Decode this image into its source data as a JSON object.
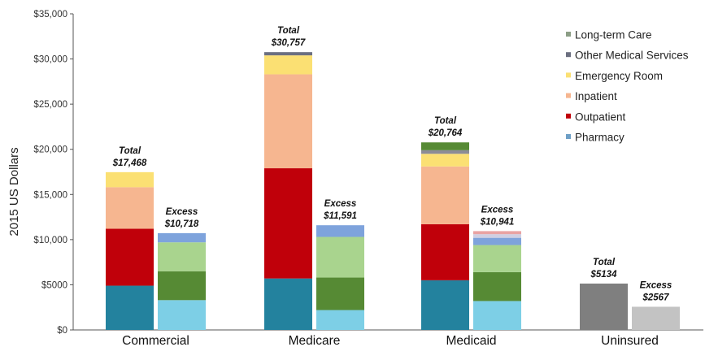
{
  "chart_data": {
    "type": "bar",
    "stacked": true,
    "ylabel": "2015 US Dollars",
    "ylim": [
      0,
      35000
    ],
    "yticks": [
      {
        "value": 0,
        "label": "$0"
      },
      {
        "value": 5000,
        "label": "$5000"
      },
      {
        "value": 10000,
        "label": "$10,000"
      },
      {
        "value": 15000,
        "label": "$15,000"
      },
      {
        "value": 20000,
        "label": "$20,000"
      },
      {
        "value": 25000,
        "label": "$25,000"
      },
      {
        "value": 30000,
        "label": "$30,000"
      },
      {
        "value": 35000,
        "label": "$35,000"
      }
    ],
    "grid": false,
    "legend_position": "top-right",
    "legend": [
      {
        "name": "Long-term Care",
        "color": "#8c9e86"
      },
      {
        "name": "Other Medical Services",
        "color": "#6b6f80"
      },
      {
        "name": "Emergency Room",
        "color": "#fbe073"
      },
      {
        "name": "Inpatient",
        "color": "#f6b690"
      },
      {
        "name": "Outpatient",
        "color": "#c0000a"
      },
      {
        "name": "Pharmacy",
        "color": "#6e9fc6"
      }
    ],
    "categories": [
      "Commercial",
      "Medicare",
      "Medicaid",
      "Uninsured"
    ],
    "groups": [
      {
        "category": "Commercial",
        "bars": [
          {
            "kind": "total",
            "line1": "Total",
            "line2": "$17,468",
            "segments": [
              {
                "value": 4900,
                "color": "#23829e"
              },
              {
                "value": 6300,
                "color": "#c0000a"
              },
              {
                "value": 4600,
                "color": "#f6b690"
              },
              {
                "value": 1668,
                "color": "#fbe073"
              }
            ]
          },
          {
            "kind": "excess",
            "line1": "Excess",
            "line2": "$10,718",
            "segments": [
              {
                "value": 3300,
                "color": "#7dcfe6"
              },
              {
                "value": 3200,
                "color": "#568a34"
              },
              {
                "value": 3200,
                "color": "#a9d48e"
              },
              {
                "value": 1018,
                "color": "#7ea3dc"
              }
            ]
          }
        ]
      },
      {
        "category": "Medicare",
        "bars": [
          {
            "kind": "total",
            "line1": "Total",
            "line2": "$30,757",
            "segments": [
              {
                "value": 5700,
                "color": "#23829e"
              },
              {
                "value": 12200,
                "color": "#c0000a"
              },
              {
                "value": 10400,
                "color": "#f6b690"
              },
              {
                "value": 2100,
                "color": "#fbe073"
              },
              {
                "value": 357,
                "color": "#6b6f80"
              }
            ]
          },
          {
            "kind": "excess",
            "line1": "Excess",
            "line2": "$11,591",
            "segments": [
              {
                "value": 2200,
                "color": "#7dcfe6"
              },
              {
                "value": 3600,
                "color": "#568a34"
              },
              {
                "value": 4500,
                "color": "#a9d48e"
              },
              {
                "value": 1291,
                "color": "#7ea3dc"
              }
            ]
          }
        ]
      },
      {
        "category": "Medicaid",
        "bars": [
          {
            "kind": "total",
            "line1": "Total",
            "line2": "$20,764",
            "segments": [
              {
                "value": 5500,
                "color": "#23829e"
              },
              {
                "value": 6200,
                "color": "#c0000a"
              },
              {
                "value": 6400,
                "color": "#f6b690"
              },
              {
                "value": 1400,
                "color": "#fbe073"
              },
              {
                "value": 400,
                "color": "#8c8c96"
              },
              {
                "value": 864,
                "color": "#568a34"
              }
            ]
          },
          {
            "kind": "excess",
            "line1": "Excess",
            "line2": "$10,941",
            "segments": [
              {
                "value": 3200,
                "color": "#7dcfe6"
              },
              {
                "value": 3200,
                "color": "#568a34"
              },
              {
                "value": 3000,
                "color": "#a9d48e"
              },
              {
                "value": 800,
                "color": "#7ea3dc"
              },
              {
                "value": 400,
                "color": "#cfcfe2"
              },
              {
                "value": 341,
                "color": "#e8a3a3"
              }
            ]
          }
        ]
      },
      {
        "category": "Uninsured",
        "bars": [
          {
            "kind": "total",
            "line1": "Total",
            "line2": "$5134",
            "segments": [
              {
                "value": 5134,
                "color": "#7f7f7f"
              }
            ]
          },
          {
            "kind": "excess",
            "line1": "Excess",
            "line2": "$2567",
            "segments": [
              {
                "value": 2567,
                "color": "#c3c3c3"
              }
            ]
          }
        ]
      }
    ]
  }
}
